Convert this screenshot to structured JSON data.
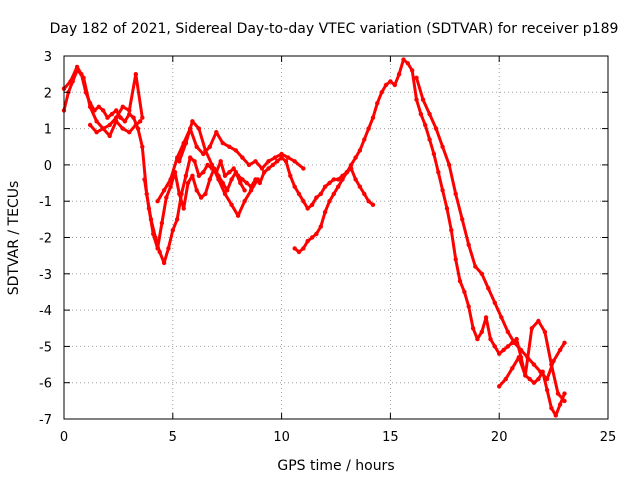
{
  "chart_data": {
    "type": "scatter",
    "title": "Day 182 of 2021, Sidereal Day-to-day VTEC variation (SDTVAR) for receiver p189",
    "xlabel": "GPS time / hours",
    "ylabel": "SDTVAR / TECUs",
    "xlim": [
      0,
      25
    ],
    "ylim": [
      -7,
      3
    ],
    "x_ticks": [
      0,
      5,
      10,
      15,
      20,
      25
    ],
    "y_ticks": [
      -7,
      -6,
      -5,
      -4,
      -3,
      -2,
      -1,
      0,
      1,
      2,
      3
    ],
    "grid": true,
    "marker": "+",
    "series": [
      {
        "name": "SDTVAR",
        "color": "#ff0000",
        "segments": [
          {
            "x": [
              0.0,
              0.2,
              0.4,
              0.6,
              0.8,
              1.0,
              1.2,
              1.4,
              1.6,
              1.8,
              2.0,
              2.2,
              2.4,
              2.6,
              2.8,
              3.0,
              3.2,
              3.4,
              3.6,
              3.8,
              4.0,
              4.2,
              4.4,
              4.6,
              4.8,
              5.0,
              5.2,
              5.4,
              5.6,
              5.8,
              6.0,
              6.2,
              6.4,
              6.6,
              6.8,
              7.0,
              7.2,
              7.4,
              7.6,
              7.8,
              8.0,
              8.2,
              8.4,
              8.6,
              8.8,
              9.0,
              9.2,
              9.4,
              9.6,
              9.8,
              10.0,
              10.2,
              10.4,
              10.6,
              10.8,
              11.0,
              11.2,
              11.4,
              11.6,
              11.8,
              12.0,
              12.2,
              12.4,
              12.6,
              12.8,
              13.0,
              13.2,
              13.4,
              13.6,
              13.8,
              14.0,
              14.2,
              14.4,
              14.6,
              14.8,
              15.0,
              15.2,
              15.4,
              15.6,
              15.8,
              16.0,
              16.2,
              16.4,
              16.6,
              16.8,
              17.0,
              17.2,
              17.4,
              17.6,
              17.8,
              18.0,
              18.2,
              18.4,
              18.6,
              18.8,
              19.0,
              19.2,
              19.4,
              19.6,
              19.8,
              20.0,
              20.2,
              20.4,
              20.6,
              20.8,
              21.0,
              21.2,
              21.4,
              21.6,
              21.8,
              22.0,
              22.2,
              22.4,
              22.6,
              22.8,
              23.0
            ],
            "y": [
              1.5,
              2.0,
              2.3,
              2.6,
              2.5,
              2.0,
              1.7,
              1.5,
              1.6,
              1.5,
              1.3,
              1.4,
              1.5,
              1.3,
              1.2,
              1.4,
              1.3,
              1.0,
              0.5,
              -0.8,
              -1.5,
              -2.0,
              -2.4,
              -2.7,
              -2.3,
              -1.8,
              -1.5,
              -0.8,
              -0.3,
              0.2,
              0.1,
              -0.3,
              -0.2,
              0.0,
              -0.1,
              -0.2,
              0.1,
              -0.3,
              -0.2,
              -0.1,
              -0.3,
              -0.4,
              -0.5,
              -0.6,
              -0.4,
              -0.5,
              -0.2,
              -0.1,
              0.0,
              0.1,
              0.2,
              0.1,
              -0.3,
              -0.6,
              -0.8,
              -1.0,
              -1.2,
              -1.1,
              -0.9,
              -0.8,
              -0.6,
              -0.5,
              -0.4,
              -0.4,
              -0.3,
              -0.2,
              0.0,
              0.2,
              0.4,
              0.7,
              1.0,
              1.3,
              1.7,
              2.0,
              2.2,
              2.3,
              2.2,
              2.5,
              2.9,
              2.8,
              2.6,
              1.8,
              1.4,
              1.1,
              0.7,
              0.3,
              -0.2,
              -0.7,
              -1.2,
              -1.8,
              -2.6,
              -3.2,
              -3.5,
              -3.9,
              -4.5,
              -4.8,
              -4.6,
              -4.2,
              -4.8,
              -5.0,
              -5.2,
              -5.1,
              -5.0,
              -4.9,
              -4.8,
              -5.3,
              -5.8,
              -5.9,
              -6.0,
              -5.9,
              -5.7,
              -6.2,
              -6.7,
              -6.9,
              -6.6,
              -6.3
            ]
          },
          {
            "x": [
              0.0,
              0.3,
              0.6,
              0.9,
              1.2,
              1.5,
              1.8,
              2.1,
              2.4,
              2.7,
              3.0,
              3.3,
              3.6
            ],
            "y": [
              2.1,
              2.3,
              2.7,
              2.4,
              1.6,
              1.2,
              1.0,
              1.1,
              1.3,
              1.6,
              1.5,
              2.5,
              1.3
            ]
          },
          {
            "x": [
              1.2,
              1.5,
              1.8,
              2.1,
              2.4,
              2.7,
              3.0,
              3.3,
              3.5
            ],
            "y": [
              1.1,
              0.9,
              1.0,
              0.8,
              1.2,
              1.0,
              0.9,
              1.1,
              1.2
            ]
          },
          {
            "x": [
              3.7,
              3.9,
              4.1,
              4.3,
              4.5,
              4.7,
              4.9,
              5.1,
              5.3,
              5.5,
              5.7,
              5.9,
              6.1,
              6.3,
              6.5,
              6.7,
              6.9,
              7.1,
              7.3,
              7.5,
              7.7,
              7.9,
              8.1,
              8.3
            ],
            "y": [
              -0.4,
              -1.2,
              -1.9,
              -2.3,
              -1.6,
              -0.9,
              -0.6,
              -0.2,
              -0.8,
              -1.2,
              -0.5,
              -0.3,
              -0.7,
              -0.9,
              -0.8,
              -0.4,
              -0.1,
              -0.3,
              -0.5,
              -0.7,
              -0.4,
              -0.2,
              -0.5,
              -0.7
            ]
          },
          {
            "x": [
              4.3,
              4.6,
              4.9,
              5.2,
              5.5,
              5.8,
              6.1,
              6.4,
              6.7,
              7.0,
              7.3,
              7.6,
              7.9,
              8.2,
              8.5,
              8.8,
              9.1,
              9.4,
              9.7,
              10.0,
              10.3,
              10.6,
              11.0
            ],
            "y": [
              -1.0,
              -0.7,
              -0.4,
              0.2,
              0.6,
              1.0,
              0.5,
              0.3,
              0.5,
              0.9,
              0.6,
              0.5,
              0.4,
              0.2,
              0.0,
              0.1,
              -0.1,
              0.1,
              0.2,
              0.3,
              0.2,
              0.1,
              -0.1
            ]
          },
          {
            "x": [
              5.3,
              5.6,
              5.9,
              6.2,
              6.5,
              6.8,
              7.1,
              7.4,
              7.7,
              8.0,
              8.3,
              8.6,
              8.9
            ],
            "y": [
              0.1,
              0.6,
              1.2,
              1.0,
              0.4,
              0.0,
              -0.4,
              -0.8,
              -1.1,
              -1.4,
              -1.0,
              -0.7,
              -0.4
            ]
          },
          {
            "x": [
              10.6,
              10.8,
              11.0,
              11.2,
              11.4,
              11.6,
              11.8,
              12.0,
              12.2,
              12.4,
              12.6,
              12.8,
              13.0,
              13.2,
              13.4,
              13.6,
              13.8,
              14.0,
              14.2
            ],
            "y": [
              -2.3,
              -2.4,
              -2.3,
              -2.1,
              -2.0,
              -1.9,
              -1.7,
              -1.3,
              -1.0,
              -0.8,
              -0.6,
              -0.4,
              -0.2,
              -0.1,
              -0.4,
              -0.6,
              -0.8,
              -1.0,
              -1.1
            ]
          },
          {
            "x": [
              16.2,
              16.5,
              16.8,
              17.1,
              17.4,
              17.7,
              18.0,
              18.3,
              18.6,
              18.9,
              19.2,
              19.5,
              19.8,
              20.1,
              20.4,
              20.7,
              21.0,
              21.3,
              21.6,
              21.9,
              22.2,
              22.5,
              22.8,
              23.0
            ],
            "y": [
              2.4,
              1.8,
              1.4,
              1.0,
              0.5,
              0.0,
              -0.8,
              -1.5,
              -2.2,
              -2.8,
              -3.0,
              -3.4,
              -3.8,
              -4.2,
              -4.6,
              -4.9,
              -5.1,
              -5.3,
              -5.5,
              -5.7,
              -5.9,
              -5.4,
              -5.1,
              -4.9
            ]
          },
          {
            "x": [
              20.0,
              20.3,
              20.6,
              20.9,
              21.2,
              21.5,
              21.8,
              22.1,
              22.4,
              22.7,
              23.0
            ],
            "y": [
              -6.1,
              -5.9,
              -5.6,
              -5.3,
              -5.8,
              -4.5,
              -4.3,
              -4.6,
              -5.5,
              -6.3,
              -6.5
            ]
          }
        ]
      }
    ]
  }
}
